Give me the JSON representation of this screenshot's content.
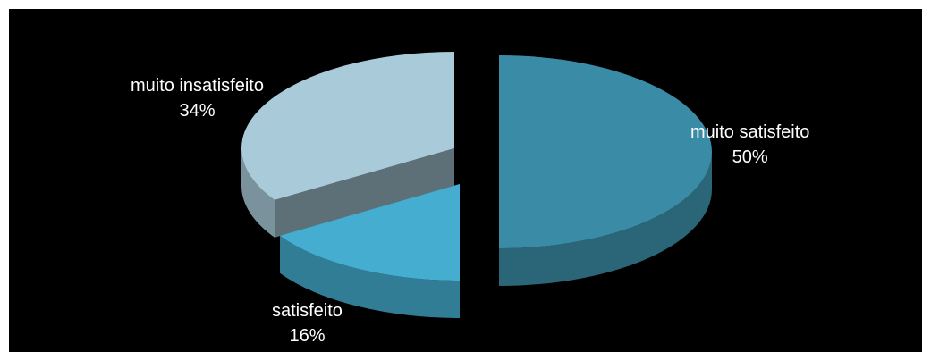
{
  "chart_data": {
    "type": "pie",
    "style": "3d-exploded",
    "background": "#000000",
    "slices": [
      {
        "label": "muito satisfeito",
        "value": 50,
        "percent_label": "50%",
        "color": "#3a8ca6"
      },
      {
        "label": "satisfeito",
        "value": 16,
        "percent_label": "16%",
        "color": "#45aed0"
      },
      {
        "label": "muito insatisfeito",
        "value": 34,
        "percent_label": "34%",
        "color": "#a9cbd9"
      }
    ]
  }
}
